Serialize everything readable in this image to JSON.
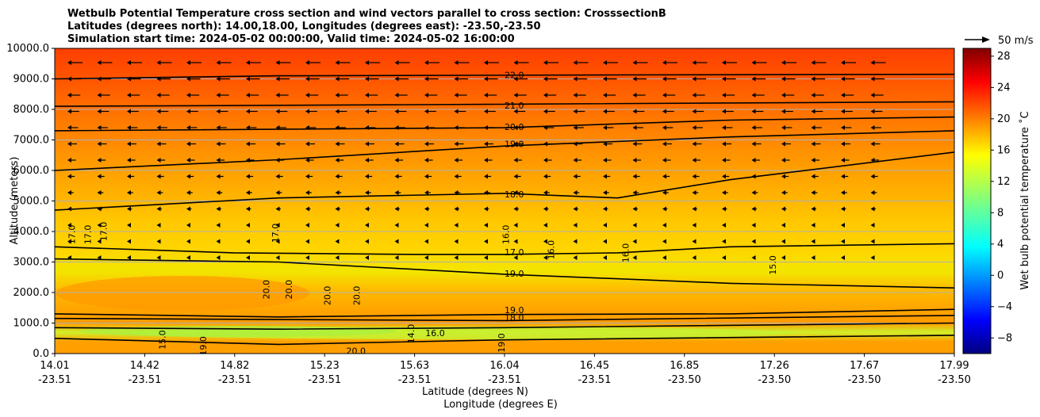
{
  "chart_data": {
    "type": "contour",
    "title_lines": [
      "Wetbulb Potential Temperature cross section and wind vectors parallel to cross section: CrosssectionB",
      "Latitudes (degrees north): 14.00,18.00, Longitudes (degrees east): -23.50,-23.50",
      "Simulation start time: 2024-05-02 00:00:00, Valid time: 2024-05-02 16:00:00"
    ],
    "ylabel": "Altitude (meters)",
    "xlabel_lat": "Latitude (degrees N)",
    "xlabel_lon": "Longitude (degrees E)",
    "ylim": [
      0,
      10000
    ],
    "y_ticks": [
      "0.0",
      "1000.0",
      "2000.0",
      "3000.0",
      "4000.0",
      "5000.0",
      "6000.0",
      "7000.0",
      "8000.0",
      "9000.0",
      "10000.0"
    ],
    "x_ticks": [
      {
        "lat": "14.01",
        "lon": "-23.51"
      },
      {
        "lat": "14.42",
        "lon": "-23.51"
      },
      {
        "lat": "14.82",
        "lon": "-23.51"
      },
      {
        "lat": "15.23",
        "lon": "-23.51"
      },
      {
        "lat": "15.63",
        "lon": "-23.51"
      },
      {
        "lat": "16.04",
        "lon": "-23.51"
      },
      {
        "lat": "16.45",
        "lon": "-23.51"
      },
      {
        "lat": "16.85",
        "lon": "-23.50"
      },
      {
        "lat": "17.26",
        "lon": "-23.50"
      },
      {
        "lat": "17.67",
        "lon": "-23.50"
      },
      {
        "lat": "17.99",
        "lon": "-23.50"
      }
    ],
    "grid": "horizontal",
    "colorbar": {
      "label": "Wet bulb potential temperature ˚C",
      "min": -10,
      "max": 29,
      "colormap": "jet",
      "ticks": [
        "−8",
        "−4",
        "0",
        "4",
        "8",
        "12",
        "16",
        "20",
        "24",
        "28"
      ]
    },
    "vector_key": {
      "label": "50 m/s"
    },
    "contours": [
      {
        "level": "22.0",
        "label_x": 16.0,
        "label_y": 9100,
        "points": [
          [
            14.01,
            9000
          ],
          [
            15.0,
            9100
          ],
          [
            16.5,
            9130
          ],
          [
            17.99,
            9150
          ]
        ]
      },
      {
        "level": "21.0",
        "label_x": 16.0,
        "label_y": 8100,
        "points": [
          [
            14.01,
            8100
          ],
          [
            15.5,
            8150
          ],
          [
            17.99,
            8250
          ]
        ]
      },
      {
        "level": "20.0",
        "label_x": 16.0,
        "label_y": 7400,
        "points": [
          [
            14.01,
            7300
          ],
          [
            16.0,
            7400
          ],
          [
            17.0,
            7650
          ],
          [
            17.99,
            7750
          ]
        ]
      },
      {
        "level": "19.0",
        "label_x": 16.0,
        "label_y": 6850,
        "points": [
          [
            14.01,
            6000
          ],
          [
            15.0,
            6350
          ],
          [
            16.0,
            6800
          ],
          [
            17.0,
            7100
          ],
          [
            17.99,
            7300
          ]
        ]
      },
      {
        "level": "18.0",
        "label_x": 16.0,
        "label_y": 5200,
        "points": [
          [
            14.01,
            4700
          ],
          [
            15.0,
            5100
          ],
          [
            16.0,
            5250
          ],
          [
            16.5,
            5100
          ],
          [
            17.0,
            5700
          ],
          [
            17.99,
            6600
          ]
        ]
      },
      {
        "level": "17.0",
        "label_x": 16.0,
        "label_y": 3300,
        "points": [
          [
            14.01,
            3500
          ],
          [
            14.8,
            3300
          ],
          [
            15.6,
            3250
          ],
          [
            16.0,
            3250
          ],
          [
            16.5,
            3300
          ],
          [
            17.0,
            3500
          ],
          [
            17.99,
            3600
          ]
        ]
      },
      {
        "level": "19.0",
        "label_x": 16.0,
        "label_y": 2600,
        "points": [
          [
            14.01,
            3100
          ],
          [
            15.0,
            3000
          ],
          [
            16.0,
            2600
          ],
          [
            17.0,
            2300
          ],
          [
            17.99,
            2150
          ]
        ]
      },
      {
        "level": "19.0",
        "label_x": 16.0,
        "label_y": 1400,
        "points": [
          [
            14.01,
            1300
          ],
          [
            15.0,
            1200
          ],
          [
            16.0,
            1280
          ],
          [
            17.0,
            1300
          ],
          [
            17.99,
            1450
          ]
        ]
      },
      {
        "level": "18.0",
        "label_x": 16.0,
        "label_y": 1150,
        "points": [
          [
            14.01,
            1150
          ],
          [
            16.0,
            1080
          ],
          [
            17.99,
            1250
          ]
        ]
      },
      {
        "level": "16.0",
        "label_x": 15.65,
        "label_y": 650,
        "points": [
          [
            14.01,
            850
          ],
          [
            15.0,
            800
          ],
          [
            16.0,
            850
          ],
          [
            17.99,
            1000
          ]
        ]
      },
      {
        "level": "20.0",
        "label_x": 15.3,
        "label_y": 60,
        "points": [
          [
            14.01,
            500
          ],
          [
            15.0,
            300
          ],
          [
            16.0,
            450
          ],
          [
            17.99,
            600
          ]
        ]
      }
    ],
    "contour_labels_extra": [
      {
        "text": "17.0",
        "x": 14.1,
        "y": 3900
      },
      {
        "text": "17.0",
        "x": 14.17,
        "y": 3900
      },
      {
        "text": "17.0",
        "x": 14.24,
        "y": 4000
      },
      {
        "text": "17.0",
        "x": 15.0,
        "y": 3950
      },
      {
        "text": "16.0",
        "x": 16.02,
        "y": 3900
      },
      {
        "text": "16.0",
        "x": 16.22,
        "y": 3400
      },
      {
        "text": "16.0",
        "x": 16.55,
        "y": 3300
      },
      {
        "text": "15.0",
        "x": 17.2,
        "y": 2900
      },
      {
        "text": "20.0",
        "x": 14.96,
        "y": 2100
      },
      {
        "text": "20.0",
        "x": 15.06,
        "y": 2100
      },
      {
        "text": "20.0",
        "x": 15.23,
        "y": 1900
      },
      {
        "text": "20.0",
        "x": 15.36,
        "y": 1900
      },
      {
        "text": "15.0",
        "x": 14.5,
        "y": 450
      },
      {
        "text": "19.0",
        "x": 14.68,
        "y": 250
      },
      {
        "text": "14.0",
        "x": 15.6,
        "y": 650
      },
      {
        "text": "19.0",
        "x": 16.0,
        "y": 350
      }
    ]
  }
}
